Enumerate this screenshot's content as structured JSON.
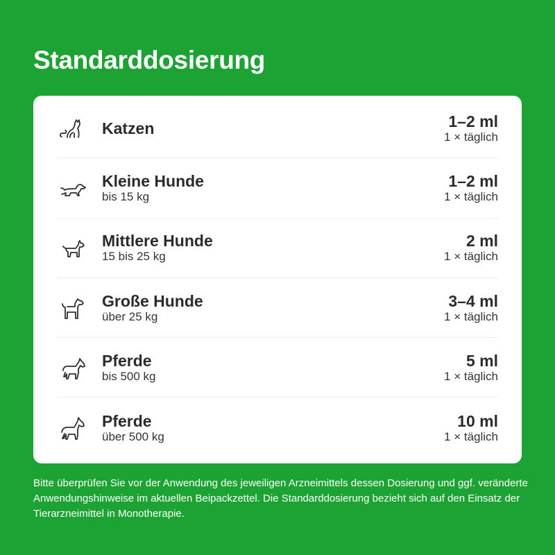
{
  "title": "Standarddosierung",
  "rows": [
    {
      "icon": "cat-icon",
      "name": "Katzen",
      "sub": "",
      "amount": "1–2 ml",
      "freq": "1 × täglich"
    },
    {
      "icon": "small-dog-icon",
      "name": "Kleine Hunde",
      "sub": "bis 15 kg",
      "amount": "1–2 ml",
      "freq": "1 × täglich"
    },
    {
      "icon": "medium-dog-icon",
      "name": "Mittlere Hunde",
      "sub": "15 bis 25 kg",
      "amount": "2 ml",
      "freq": "1 × täglich"
    },
    {
      "icon": "large-dog-icon",
      "name": "Große Hunde",
      "sub": "über 25 kg",
      "amount": "3–4 ml",
      "freq": "1 × täglich"
    },
    {
      "icon": "horse-icon",
      "name": "Pferde",
      "sub": "bis 500 kg",
      "amount": "5 ml",
      "freq": "1 × täglich"
    },
    {
      "icon": "large-horse-icon",
      "name": "Pferde",
      "sub": "über 500 kg",
      "amount": "10 ml",
      "freq": "1 × täglich"
    }
  ],
  "note": "Bitte überprüfen Sie vor der Anwendung des jeweiligen Arzneimittels dessen Dosierung und ggf. veränderte Anwendungshinweise im aktuellen Beipackzettel. Die Standarddosierung bezieht sich auf den Einsatz der Tierarzneimittel in Monotherapie.",
  "colors": {
    "background": "#1ca333",
    "card": "#ffffff",
    "text": "#2b2b2b"
  }
}
